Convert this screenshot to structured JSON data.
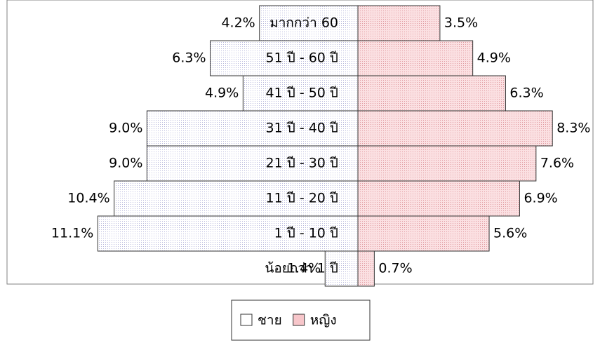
{
  "chart_data": {
    "type": "population-pyramid",
    "categories": [
      "มากกว่า 60",
      "51 ปี - 60 ปี",
      "41 ปี - 50 ปี",
      "31 ปี - 40 ปี",
      "21 ปี - 30 ปี",
      "11 ปี - 20 ปี",
      "1 ปี - 10 ปี",
      "น้อยกว่า 1 ปี"
    ],
    "series": [
      {
        "name": "ชาย",
        "color": "#eeeef8",
        "values": [
          4.2,
          6.3,
          4.9,
          9.0,
          9.0,
          10.4,
          11.1,
          1.4
        ],
        "value_labels": [
          "4.2%",
          "6.3%",
          "4.9%",
          "9.0%",
          "9.0%",
          "10.4%",
          "11.1%",
          "1.4%"
        ]
      },
      {
        "name": "หญิง",
        "color": "#f7c6ca",
        "values": [
          3.5,
          4.9,
          6.3,
          8.3,
          7.6,
          6.9,
          5.6,
          0.7
        ],
        "value_labels": [
          "3.5%",
          "4.9%",
          "6.3%",
          "8.3%",
          "7.6%",
          "6.9%",
          "5.6%",
          "0.7%"
        ]
      }
    ],
    "legend": "bottom"
  }
}
